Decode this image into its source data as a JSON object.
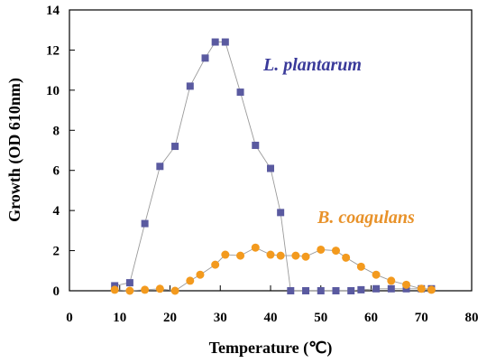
{
  "chart_data": {
    "type": "line",
    "xlabel": "Temperature (℃)",
    "ylabel": "Growth  (OD 610nm)",
    "xlim": [
      0,
      80
    ],
    "ylim": [
      0,
      14
    ],
    "xticks": [
      0,
      10,
      20,
      30,
      40,
      50,
      60,
      70,
      80
    ],
    "yticks": [
      0,
      2,
      4,
      6,
      8,
      10,
      12,
      14
    ],
    "grid": false,
    "series": [
      {
        "name": "L. plantarum",
        "marker": "square",
        "color": "#5a5aa0",
        "label_color": "#3a3a9a",
        "x": [
          9,
          12,
          15,
          18,
          21,
          24,
          27,
          29,
          31,
          34,
          37,
          40,
          42,
          44,
          47,
          50,
          53,
          56,
          58,
          61,
          64,
          67,
          70,
          72
        ],
        "y": [
          0.25,
          0.4,
          3.35,
          6.2,
          7.2,
          10.2,
          11.6,
          12.4,
          12.4,
          9.9,
          7.25,
          6.1,
          3.9,
          0.0,
          0.0,
          0.0,
          0.0,
          0.0,
          0.05,
          0.1,
          0.1,
          0.1,
          0.1,
          0.1
        ]
      },
      {
        "name": "B. coagulans",
        "marker": "circle",
        "color": "#f39a1e",
        "label_color": "#e8922a",
        "x": [
          9,
          12,
          15,
          18,
          21,
          24,
          26,
          29,
          31,
          34,
          37,
          40,
          42,
          45,
          47,
          50,
          53,
          55,
          58,
          61,
          64,
          67,
          70,
          72
        ],
        "y": [
          0.05,
          0.0,
          0.05,
          0.1,
          0.0,
          0.5,
          0.8,
          1.3,
          1.8,
          1.75,
          2.15,
          1.8,
          1.75,
          1.75,
          1.7,
          2.05,
          2.0,
          1.65,
          1.2,
          0.8,
          0.5,
          0.3,
          0.1,
          0.05
        ]
      }
    ]
  }
}
